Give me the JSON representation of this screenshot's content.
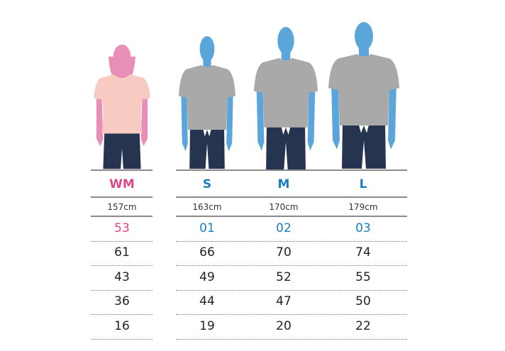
{
  "colors": {
    "women_accent": "#e0468a",
    "men_accent": "#1a7dc0",
    "women_figure": "#e88fb7",
    "men_figure": "#5aa6da",
    "women_shirt": "#f8cbc2",
    "men_shirt": "#a9a9a9",
    "jeans": "#263450"
  },
  "columns": [
    {
      "size": "WM",
      "height": "157cm",
      "code": "53",
      "values": [
        "61",
        "43",
        "36",
        "16"
      ]
    },
    {
      "size": "S",
      "height": "163cm",
      "code": "01",
      "values": [
        "66",
        "49",
        "44",
        "19"
      ]
    },
    {
      "size": "M",
      "height": "170cm",
      "code": "02",
      "values": [
        "70",
        "52",
        "47",
        "20"
      ]
    },
    {
      "size": "L",
      "height": "179cm",
      "code": "03",
      "values": [
        "74",
        "55",
        "50",
        "22"
      ]
    }
  ]
}
